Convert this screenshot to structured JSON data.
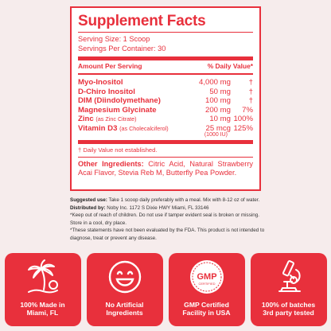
{
  "facts": {
    "title": "Supplement Facts",
    "serving_size": "Serving Size: 1 Scoop",
    "servings_per_container": "Servings Per Container: 30",
    "header_left": "Amount Per Serving",
    "header_right": "% Daily Value*",
    "rows": [
      {
        "name": "Myo-Inositol",
        "sub": "",
        "amount": "4,000 mg",
        "dv": "†"
      },
      {
        "name": "D-Chiro Inositol",
        "sub": "",
        "amount": "50 mg",
        "dv": "†"
      },
      {
        "name": "DIM (Diindolymethane)",
        "sub": "",
        "amount": "100 mg",
        "dv": "†"
      },
      {
        "name": "Magnesium Glycinate",
        "sub": "",
        "amount": "200 mg",
        "dv": "7%"
      },
      {
        "name": "Zinc",
        "sub": "(as Zinc Citrate)",
        "amount": "10 mg",
        "dv": "100%"
      },
      {
        "name": "Vitamin D3",
        "sub": "(as Cholecalciferol)",
        "amount": "25 mcg",
        "dv": "125%"
      }
    ],
    "vitd_iu": "(1000 IU)",
    "dagger_note": "† Daily Value not established.",
    "other_label": "Other Ingredients:",
    "other_text": "Citric Acid, Natural Strawberry Acai Flavor, Stevia Reb M, Butterfly Pea Powder."
  },
  "notes": {
    "suggested_label": "Suggested use:",
    "suggested_text": "Take 1 scoop daily preferably with a meal. Mix with 8-12 oz of water.",
    "distributed_label": "Distributed by:",
    "distributed_text": "Noby Inc. 1172 S Dixie HWY Miami, FL 33146",
    "warning": "*Keep out of reach of children. Do not use if tamper evident seal is broken or missing. Store in a cool, dry place.",
    "fda": "*These statements have not been evaluated by the FDA. This product is not intended to diagnose, treat or prevent any disease."
  },
  "badges": [
    {
      "icon": "palm-tree-icon",
      "text": "100% Made in\nMiami, FL"
    },
    {
      "icon": "smiley-icon",
      "text": "No Artificial\nIngredients"
    },
    {
      "icon": "gmp-seal-icon",
      "text": "GMP Certified\nFacility in USA",
      "seal_text": "GMP",
      "seal_sub": "CERTIFIED"
    },
    {
      "icon": "microscope-icon",
      "text": "100% of batches\n3rd party tested"
    }
  ],
  "colors": {
    "accent": "#e8303c",
    "background": "#f6ecec"
  }
}
